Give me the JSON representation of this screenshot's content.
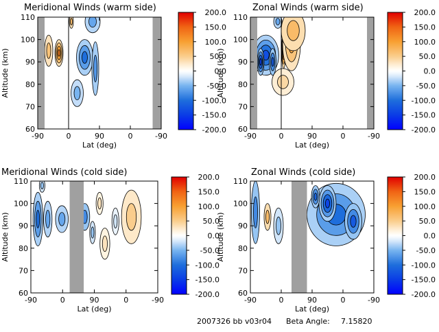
{
  "footer": {
    "date_code": "2007326 bb v03r04",
    "beta_label": "Beta Angle:",
    "beta_value": "7.15820"
  },
  "colorbar": {
    "ticks": [
      "200.0",
      "150.0",
      "100.0",
      "50.0",
      "0.0",
      "-50.0",
      "-100.0",
      "-150.0",
      "-200.0"
    ],
    "range": [
      -200,
      200
    ]
  },
  "chart_data": [
    {
      "type": "contour",
      "title": "Meridional Winds (warm side)",
      "xlabel": "Lat (deg)",
      "ylabel": "Altitude (km)",
      "x_ticks": [
        "-90",
        "0",
        "90",
        "0",
        "-90"
      ],
      "y_ticks": [
        "110",
        "100",
        "90",
        "80",
        "70",
        "60"
      ],
      "ylim": [
        60,
        110
      ],
      "x_span": [
        0,
        360
      ],
      "gaps": [
        [
          0,
          20
        ],
        [
          90,
          90
        ],
        [
          335,
          360
        ]
      ],
      "blobs": [
        {
          "x": 62,
          "y": 94,
          "rx": 12,
          "ry": 6,
          "v": 130
        },
        {
          "x": 32,
          "y": 95,
          "rx": 12,
          "ry": 7,
          "v": 60
        },
        {
          "x": 98,
          "y": 108,
          "rx": 6,
          "ry": 3,
          "v": 70
        },
        {
          "x": 137,
          "y": 92,
          "rx": 24,
          "ry": 8,
          "v": -100
        },
        {
          "x": 160,
          "y": 108,
          "rx": 22,
          "ry": 5,
          "v": -60
        },
        {
          "x": 168,
          "y": 87,
          "rx": 10,
          "ry": 12,
          "v": -70
        },
        {
          "x": 115,
          "y": 76,
          "rx": 18,
          "ry": 6,
          "v": -50
        }
      ]
    },
    {
      "type": "contour",
      "title": "Zonal Winds (warm side)",
      "xlabel": "Lat (deg)",
      "ylabel": "Altitude (km)",
      "x_ticks": [
        "-90",
        "0",
        "90",
        "0",
        "-90"
      ],
      "y_ticks": [
        "110",
        "100",
        "90",
        "80",
        "70",
        "60"
      ],
      "ylim": [
        60,
        110
      ],
      "x_span": [
        0,
        360
      ],
      "gaps": [
        [
          0,
          20
        ],
        [
          90,
          90
        ],
        [
          340,
          360
        ]
      ],
      "blobs": [
        {
          "x": 45,
          "y": 93,
          "rx": 38,
          "ry": 9,
          "v": -130
        },
        {
          "x": 30,
          "y": 90,
          "rx": 10,
          "ry": 6,
          "v": -150
        },
        {
          "x": 65,
          "y": 90,
          "rx": 10,
          "ry": 6,
          "v": -120
        },
        {
          "x": 97,
          "y": 95,
          "rx": 6,
          "ry": 8,
          "v": 160
        },
        {
          "x": 120,
          "y": 98,
          "rx": 26,
          "ry": 12,
          "v": 90
        },
        {
          "x": 125,
          "y": 104,
          "rx": 35,
          "ry": 9,
          "v": 70
        },
        {
          "x": 95,
          "y": 81,
          "rx": 32,
          "ry": 6,
          "v": 40
        },
        {
          "x": 80,
          "y": 108,
          "rx": 12,
          "ry": 3,
          "v": -60
        }
      ]
    },
    {
      "type": "contour",
      "title": "Meridional Winds (cold side)",
      "xlabel": "Lat (deg)",
      "ylabel": "Altitude (km)",
      "x_ticks": [
        "-90",
        "0",
        "90",
        "0",
        "-90"
      ],
      "y_ticks": [
        "110",
        "100",
        "90",
        "80",
        "70",
        "60"
      ],
      "ylim": [
        60,
        110
      ],
      "x_span": [
        0,
        360
      ],
      "gaps": [
        [
          110,
          150
        ]
      ],
      "blobs": [
        {
          "x": 20,
          "y": 93,
          "rx": 14,
          "ry": 12,
          "v": -100
        },
        {
          "x": 48,
          "y": 93,
          "rx": 12,
          "ry": 8,
          "v": -60
        },
        {
          "x": 88,
          "y": 93,
          "rx": 18,
          "ry": 6,
          "v": -60
        },
        {
          "x": 153,
          "y": 94,
          "rx": 14,
          "ry": 6,
          "v": -80
        },
        {
          "x": 195,
          "y": 100,
          "rx": 10,
          "ry": 5,
          "v": 30
        },
        {
          "x": 175,
          "y": 87,
          "rx": 8,
          "ry": 5,
          "v": -40
        },
        {
          "x": 210,
          "y": 82,
          "rx": 14,
          "ry": 7,
          "v": 30
        },
        {
          "x": 285,
          "y": 94,
          "rx": 28,
          "ry": 12,
          "v": 50
        },
        {
          "x": 240,
          "y": 92,
          "rx": 10,
          "ry": 6,
          "v": -20
        },
        {
          "x": 32,
          "y": 108,
          "rx": 8,
          "ry": 3,
          "v": -40
        }
      ]
    },
    {
      "type": "contour",
      "title": "Zonal Winds (cold side)",
      "xlabel": "Lat (deg)",
      "ylabel": "Altitude (km)",
      "x_ticks": [
        "-90",
        "0",
        "90",
        "0",
        "-90"
      ],
      "y_ticks": [
        "110",
        "100",
        "90",
        "80",
        "70",
        "60"
      ],
      "ylim": [
        60,
        110
      ],
      "x_span": [
        0,
        360
      ],
      "gaps": [
        [
          120,
          165
        ]
      ],
      "blobs": [
        {
          "x": 15,
          "y": 96,
          "rx": 12,
          "ry": 14,
          "v": -80
        },
        {
          "x": 50,
          "y": 94,
          "rx": 10,
          "ry": 6,
          "v": 70
        },
        {
          "x": 82,
          "y": 90,
          "rx": 14,
          "ry": 8,
          "v": -40
        },
        {
          "x": 250,
          "y": 95,
          "rx": 85,
          "ry": 14,
          "v": -100
        },
        {
          "x": 225,
          "y": 100,
          "rx": 25,
          "ry": 8,
          "v": -140
        },
        {
          "x": 300,
          "y": 92,
          "rx": 25,
          "ry": 8,
          "v": -120
        },
        {
          "x": 190,
          "y": 103,
          "rx": 12,
          "ry": 5,
          "v": -110
        }
      ]
    }
  ]
}
